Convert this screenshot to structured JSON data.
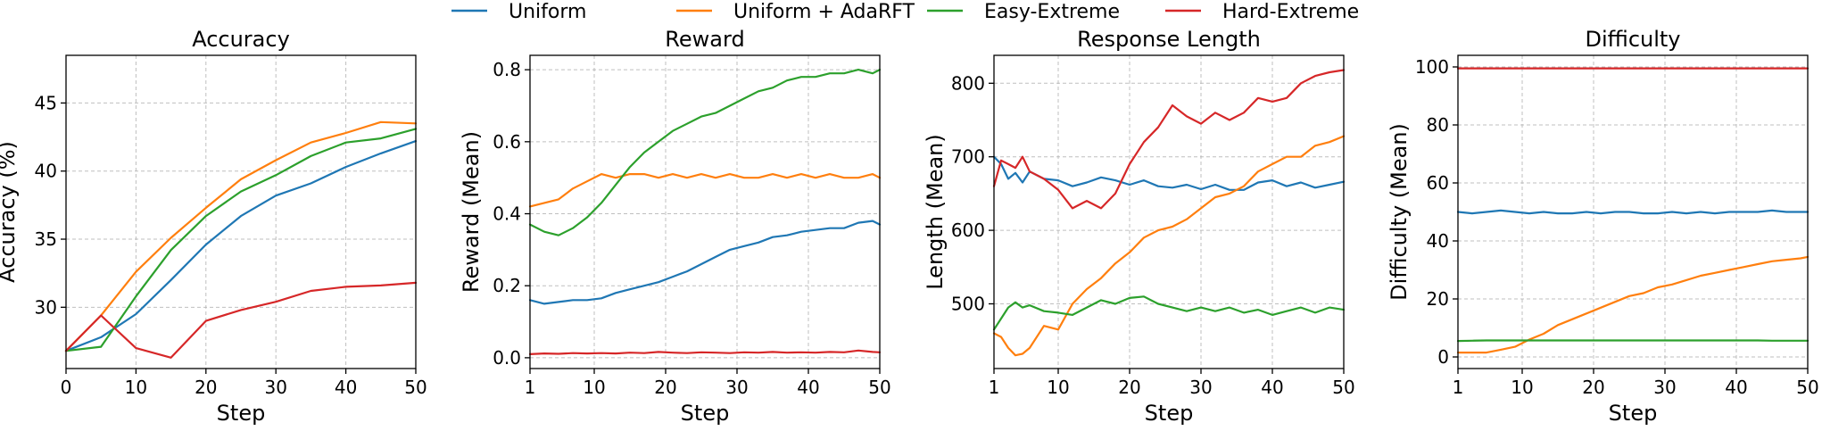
{
  "legend": [
    {
      "label": "Uniform",
      "color": "#1f77b4"
    },
    {
      "label": "Uniform + AdaRFT",
      "color": "#ff7f0e"
    },
    {
      "label": "Easy-Extreme",
      "color": "#2ca02c"
    },
    {
      "label": "Hard-Extreme",
      "color": "#d62728"
    }
  ],
  "chart_data": [
    {
      "type": "line",
      "title": "Accuracy",
      "xlabel": "Step",
      "ylabel": "Accuracy (%)",
      "xlim": [
        0,
        50
      ],
      "ylim": [
        25.5,
        48.5
      ],
      "xticks": [
        0,
        10,
        20,
        30,
        40,
        50
      ],
      "yticks": [
        30,
        35,
        40,
        45
      ],
      "grid": true,
      "x": [
        0,
        5,
        10,
        15,
        20,
        25,
        30,
        35,
        40,
        45,
        50
      ],
      "series": [
        {
          "name": "Uniform",
          "color": "#1f77b4",
          "values": [
            26.8,
            27.8,
            29.5,
            32.0,
            34.6,
            36.7,
            38.2,
            39.1,
            40.3,
            41.3,
            42.2
          ]
        },
        {
          "name": "Uniform + AdaRFT",
          "color": "#ff7f0e",
          "values": [
            26.8,
            29.4,
            32.6,
            35.1,
            37.3,
            39.4,
            40.8,
            42.1,
            42.8,
            43.6,
            43.5
          ]
        },
        {
          "name": "Easy-Extreme",
          "color": "#2ca02c",
          "values": [
            26.8,
            27.1,
            30.8,
            34.2,
            36.7,
            38.5,
            39.7,
            41.1,
            42.1,
            42.4,
            43.1
          ]
        },
        {
          "name": "Hard-Extreme",
          "color": "#d62728",
          "values": [
            26.8,
            29.4,
            27.0,
            26.3,
            29.0,
            29.8,
            30.4,
            31.2,
            31.5,
            31.6,
            31.8
          ]
        }
      ]
    },
    {
      "type": "line",
      "title": "Reward",
      "xlabel": "Step",
      "ylabel": "Reward (Mean)",
      "xlim": [
        1,
        50
      ],
      "ylim": [
        -0.03,
        0.84
      ],
      "xticks": [
        1,
        10,
        20,
        30,
        40,
        50
      ],
      "yticks": [
        0.0,
        0.2,
        0.4,
        0.6,
        0.8
      ],
      "ytick_labels": [
        "0.0",
        "0.2",
        "0.4",
        "0.6",
        "0.8"
      ],
      "grid": true,
      "x": [
        1,
        3,
        5,
        7,
        9,
        11,
        13,
        15,
        17,
        19,
        21,
        23,
        25,
        27,
        29,
        31,
        33,
        35,
        37,
        39,
        41,
        43,
        45,
        47,
        49,
        50
      ],
      "series": [
        {
          "name": "Uniform",
          "color": "#1f77b4",
          "values": [
            0.16,
            0.15,
            0.155,
            0.16,
            0.16,
            0.165,
            0.18,
            0.19,
            0.2,
            0.21,
            0.225,
            0.24,
            0.26,
            0.28,
            0.3,
            0.31,
            0.32,
            0.335,
            0.34,
            0.35,
            0.355,
            0.36,
            0.36,
            0.375,
            0.38,
            0.37
          ]
        },
        {
          "name": "Uniform + AdaRFT",
          "color": "#ff7f0e",
          "values": [
            0.42,
            0.43,
            0.44,
            0.47,
            0.49,
            0.51,
            0.5,
            0.51,
            0.51,
            0.5,
            0.51,
            0.5,
            0.51,
            0.5,
            0.51,
            0.5,
            0.5,
            0.51,
            0.5,
            0.51,
            0.5,
            0.51,
            0.5,
            0.5,
            0.51,
            0.5
          ]
        },
        {
          "name": "Easy-Extreme",
          "color": "#2ca02c",
          "values": [
            0.37,
            0.35,
            0.34,
            0.36,
            0.39,
            0.43,
            0.48,
            0.53,
            0.57,
            0.6,
            0.63,
            0.65,
            0.67,
            0.68,
            0.7,
            0.72,
            0.74,
            0.75,
            0.77,
            0.78,
            0.78,
            0.79,
            0.79,
            0.8,
            0.79,
            0.8
          ]
        },
        {
          "name": "Hard-Extreme",
          "color": "#d62728",
          "values": [
            0.01,
            0.012,
            0.011,
            0.013,
            0.012,
            0.013,
            0.012,
            0.014,
            0.013,
            0.016,
            0.014,
            0.013,
            0.015,
            0.014,
            0.013,
            0.015,
            0.014,
            0.016,
            0.014,
            0.015,
            0.014,
            0.016,
            0.015,
            0.02,
            0.016,
            0.015
          ]
        }
      ]
    },
    {
      "type": "line",
      "title": "Response Length",
      "xlabel": "Step",
      "ylabel": "Length (Mean)",
      "xlim": [
        1,
        50
      ],
      "ylim": [
        412,
        838
      ],
      "xticks": [
        1,
        10,
        20,
        30,
        40,
        50
      ],
      "yticks": [
        500,
        600,
        700,
        800
      ],
      "grid": true,
      "x": [
        1,
        2,
        3,
        4,
        5,
        6,
        8,
        10,
        12,
        14,
        16,
        18,
        20,
        22,
        24,
        26,
        28,
        30,
        32,
        34,
        36,
        38,
        40,
        42,
        44,
        46,
        48,
        50
      ],
      "series": [
        {
          "name": "Uniform",
          "color": "#1f77b4",
          "values": [
            700,
            690,
            670,
            678,
            665,
            680,
            670,
            668,
            660,
            665,
            672,
            668,
            662,
            668,
            660,
            658,
            662,
            656,
            662,
            655,
            655,
            665,
            668,
            660,
            665,
            658,
            662,
            666
          ]
        },
        {
          "name": "Uniform + AdaRFT",
          "color": "#ff7f0e",
          "values": [
            460,
            455,
            440,
            430,
            432,
            440,
            470,
            465,
            500,
            520,
            535,
            555,
            570,
            590,
            600,
            605,
            615,
            630,
            645,
            650,
            660,
            680,
            690,
            700,
            700,
            715,
            720,
            728
          ]
        },
        {
          "name": "Easy-Extreme",
          "color": "#2ca02c",
          "values": [
            465,
            480,
            495,
            502,
            495,
            498,
            490,
            488,
            485,
            495,
            505,
            500,
            508,
            510,
            500,
            495,
            490,
            495,
            490,
            495,
            488,
            492,
            485,
            490,
            495,
            488,
            495,
            492
          ]
        },
        {
          "name": "Hard-Extreme",
          "color": "#d62728",
          "values": [
            660,
            695,
            690,
            685,
            700,
            680,
            670,
            655,
            630,
            640,
            630,
            650,
            690,
            720,
            740,
            770,
            755,
            745,
            760,
            750,
            760,
            780,
            775,
            780,
            800,
            810,
            815,
            818
          ]
        }
      ]
    },
    {
      "type": "line",
      "title": "Difficulty",
      "xlabel": "Step",
      "ylabel": "Difficulty (Mean)",
      "xlim": [
        1,
        50
      ],
      "ylim": [
        -4,
        104
      ],
      "xticks": [
        1,
        10,
        20,
        30,
        40,
        50
      ],
      "yticks": [
        0,
        20,
        40,
        60,
        80,
        100
      ],
      "grid": true,
      "x": [
        1,
        3,
        5,
        7,
        9,
        11,
        13,
        15,
        17,
        19,
        21,
        23,
        25,
        27,
        29,
        31,
        33,
        35,
        37,
        39,
        41,
        43,
        45,
        47,
        49,
        50
      ],
      "series": [
        {
          "name": "Uniform",
          "color": "#1f77b4",
          "values": [
            50,
            49.5,
            50,
            50.5,
            50,
            49.5,
            50,
            49.5,
            49.5,
            50,
            49.5,
            50,
            50,
            49.5,
            49.5,
            50,
            49.5,
            50,
            49.5,
            50,
            50,
            50,
            50.5,
            50,
            50,
            50
          ]
        },
        {
          "name": "Uniform + AdaRFT",
          "color": "#ff7f0e",
          "values": [
            1.5,
            1.5,
            1.5,
            2.5,
            3.5,
            6,
            8,
            11,
            13,
            15,
            17,
            19,
            21,
            22,
            24,
            25,
            26.5,
            28,
            29,
            30,
            31,
            32,
            33,
            33.5,
            34,
            34.5
          ]
        },
        {
          "name": "Easy-Extreme",
          "color": "#2ca02c",
          "values": [
            5.5,
            5.6,
            5.7,
            5.7,
            5.7,
            5.7,
            5.7,
            5.7,
            5.7,
            5.7,
            5.7,
            5.7,
            5.7,
            5.7,
            5.7,
            5.7,
            5.7,
            5.7,
            5.7,
            5.7,
            5.7,
            5.7,
            5.6,
            5.6,
            5.6,
            5.6
          ]
        },
        {
          "name": "Hard-Extreme",
          "color": "#d62728",
          "values": [
            99.5,
            99.5,
            99.5,
            99.5,
            99.5,
            99.5,
            99.5,
            99.5,
            99.5,
            99.5,
            99.5,
            99.5,
            99.5,
            99.5,
            99.5,
            99.5,
            99.5,
            99.5,
            99.5,
            99.5,
            99.5,
            99.5,
            99.5,
            99.5,
            99.5,
            99.5
          ]
        }
      ]
    }
  ]
}
